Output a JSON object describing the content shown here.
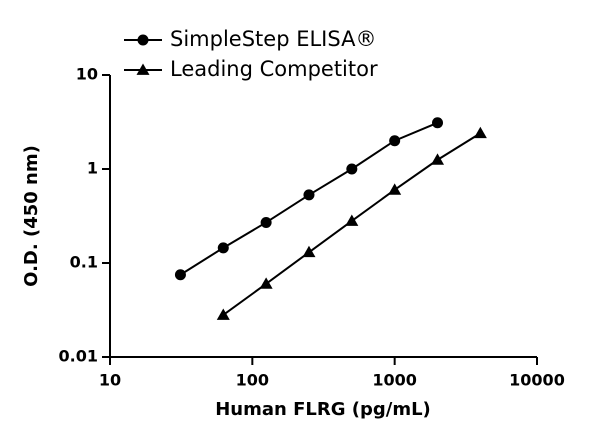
{
  "chart_data": {
    "type": "line",
    "xlabel": "Human FLRG (pg/mL)",
    "ylabel": "O.D. (450 nm)",
    "xscale": "log",
    "yscale": "log",
    "xlim": [
      10,
      10000
    ],
    "ylim": [
      0.01,
      10
    ],
    "xticks": [
      10,
      100,
      1000,
      10000
    ],
    "yticks": [
      0.01,
      0.1,
      1,
      10
    ],
    "legend": "upper left",
    "series": [
      {
        "name": "SimpleStep ELISA®",
        "color": "#000000",
        "marker": "circle",
        "x": [
          31.25,
          62.5,
          125,
          250,
          500,
          1000,
          2000
        ],
        "values": [
          0.075,
          0.145,
          0.27,
          0.53,
          1.0,
          2.0,
          3.1
        ]
      },
      {
        "name": "Leading Competitor",
        "color": "#000000",
        "marker": "triangle",
        "x": [
          62.5,
          125,
          250,
          500,
          1000,
          2000,
          4000
        ],
        "values": [
          0.028,
          0.06,
          0.13,
          0.28,
          0.6,
          1.25,
          2.4
        ]
      }
    ]
  }
}
